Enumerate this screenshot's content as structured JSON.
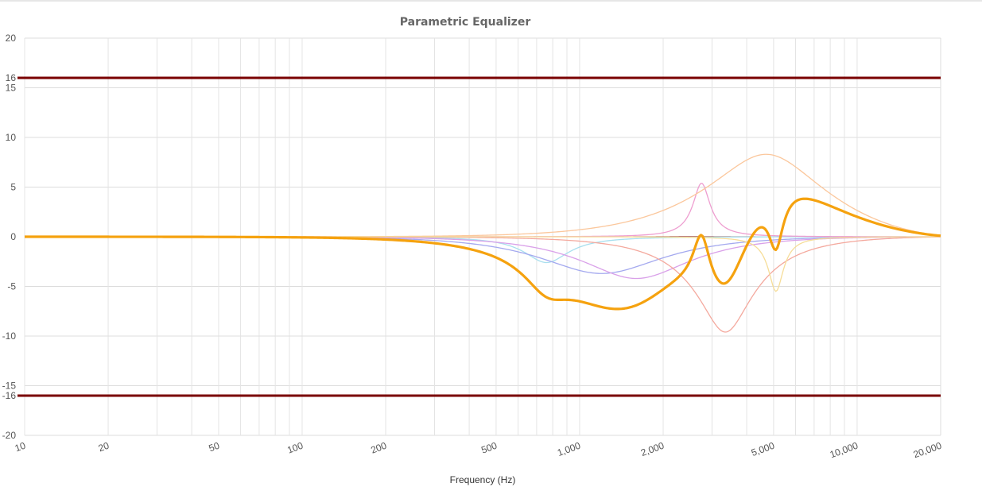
{
  "chart_data": {
    "type": "line",
    "title": "Parametric Equalizer",
    "xlabel": "Frequency (Hz)",
    "ylabel": "",
    "xscale": "log",
    "xlim": [
      10,
      20000
    ],
    "ylim": [
      -20,
      20
    ],
    "grid": true,
    "x_ticks": [
      "10",
      "20",
      "50",
      "100",
      "200",
      "500",
      "1,000",
      "2,000",
      "5,000",
      "10,000",
      "20,000"
    ],
    "x_tick_values": [
      10,
      20,
      50,
      100,
      200,
      500,
      1000,
      2000,
      5000,
      10000,
      20000
    ],
    "y_ticks": [
      "20",
      "15",
      "10",
      "5",
      "0",
      "-5",
      "-10",
      "-15",
      "-20"
    ],
    "y_tick_values": [
      20,
      15,
      10,
      5,
      0,
      -5,
      -10,
      -15,
      -20
    ],
    "limit_lines": [
      {
        "label": "16",
        "value": 16,
        "color": "#7a0000"
      },
      {
        "label": "-16",
        "value": -16,
        "color": "#7a0000"
      }
    ],
    "baseline_color": "#7a0000",
    "series": [
      {
        "id": "cyan",
        "color": "#a8dfee",
        "freq": 760,
        "gain": -2.6,
        "q": 2.2
      },
      {
        "id": "blue",
        "color": "#a4a9ef",
        "freq": 1200,
        "gain": -3.7,
        "q": 0.8
      },
      {
        "id": "violet",
        "color": "#d9a0e9",
        "freq": 1600,
        "gain": -4.2,
        "q": 0.9
      },
      {
        "id": "salmon",
        "color": "#f4a99e",
        "freq": 3350,
        "gain": -9.6,
        "q": 1.6
      },
      {
        "id": "pink",
        "color": "#ee9ed0",
        "freq": 2750,
        "gain": 5.4,
        "q": 5.5
      },
      {
        "id": "peach",
        "color": "#fbc79c",
        "freq": 4700,
        "gain": 8.3,
        "q": 0.75
      },
      {
        "id": "yellow",
        "color": "#f6dd98",
        "freq": 5100,
        "gain": -5.5,
        "q": 6.0
      }
    ],
    "total": {
      "id": "total",
      "color": "#f5a20f"
    }
  }
}
